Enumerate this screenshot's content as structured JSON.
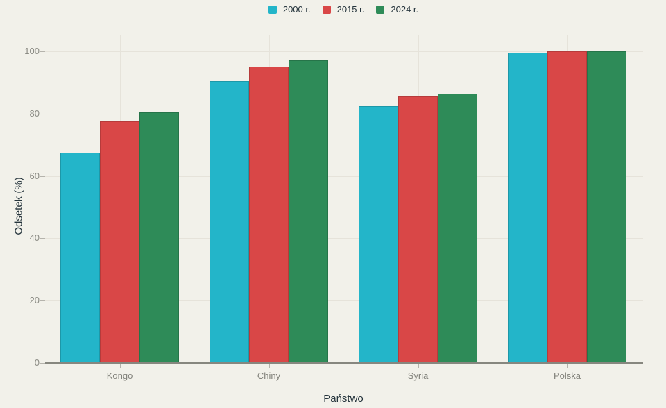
{
  "chart_data": {
    "type": "bar",
    "title": "",
    "categories": [
      "Kongo",
      "Chiny",
      "Syria",
      "Polska"
    ],
    "series": [
      {
        "name": "2000 r.",
        "color": "#23b5c9",
        "values": [
          67.5,
          90.5,
          82.5,
          99.5
        ]
      },
      {
        "name": "2015 r.",
        "color": "#d94747",
        "values": [
          77.5,
          95,
          85.5,
          99.9
        ]
      },
      {
        "name": "2024 r.",
        "color": "#2e8b58",
        "values": [
          80.5,
          97,
          86.5,
          99.9
        ]
      }
    ],
    "xlabel": "Państwo",
    "ylabel": "Odsetek (%)",
    "ylim": [
      0,
      100
    ],
    "yticks": [
      0,
      20,
      40,
      60,
      80,
      100
    ],
    "grid": true,
    "legend_position": "top-center"
  },
  "colors": {
    "background": "#f2f1ea",
    "gridline": "#e6e3da",
    "axis_line": "#87877f",
    "tick_mark": "#b5b3ac",
    "tick_label": "#8b8b84",
    "category_label": "#82827b",
    "axis_title": "#25343c",
    "legend_text": "#25343c",
    "bar_border": "rgba(0,0,0,0.16)"
  }
}
